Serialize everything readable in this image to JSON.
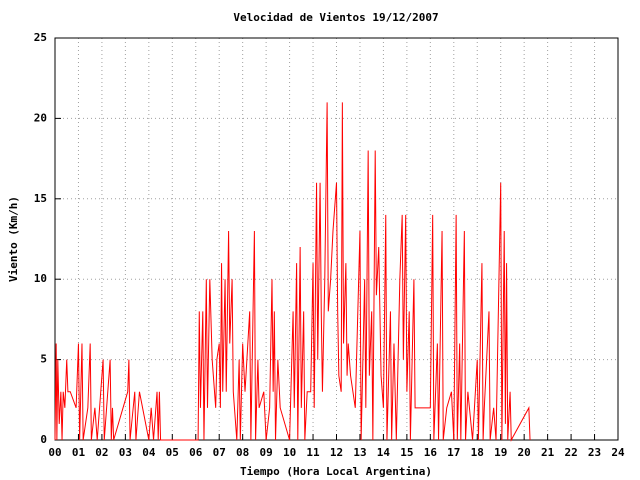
{
  "chart_data": {
    "type": "line",
    "title": "Velocidad de Vientos 19/12/2007",
    "x_label": "Tiempo (Hora Local Argentina)",
    "y_label": "Viento (Km/h)",
    "xlim": [
      0,
      24
    ],
    "ylim": [
      0,
      25
    ],
    "xticks": [
      {
        "value": 0,
        "label": "00"
      },
      {
        "value": 1,
        "label": "01"
      },
      {
        "value": 2,
        "label": "02"
      },
      {
        "value": 3,
        "label": "03"
      },
      {
        "value": 4,
        "label": "04"
      },
      {
        "value": 5,
        "label": "05"
      },
      {
        "value": 6,
        "label": "06"
      },
      {
        "value": 7,
        "label": "07"
      },
      {
        "value": 8,
        "label": "08"
      },
      {
        "value": 9,
        "label": "09"
      },
      10,
      11,
      12,
      13,
      14,
      15,
      16,
      17,
      18,
      19,
      20,
      21,
      22,
      23,
      24
    ],
    "yticks": [
      0,
      5,
      10,
      15,
      20,
      25
    ],
    "grid": true,
    "series": [
      {
        "color": "#ff0000",
        "x": [
          0.0,
          0.05,
          0.08,
          0.12,
          0.18,
          0.25,
          0.3,
          0.35,
          0.42,
          0.5,
          0.55,
          0.65,
          0.9,
          1.0,
          1.05,
          1.15,
          1.2,
          1.4,
          1.5,
          1.55,
          1.7,
          1.8,
          2.05,
          2.1,
          2.35,
          2.4,
          2.45,
          2.5,
          3.1,
          3.15,
          3.2,
          3.4,
          3.45,
          3.6,
          4.0,
          4.1,
          4.2,
          4.35,
          4.4,
          4.45,
          4.5,
          5.5,
          6.1,
          6.15,
          6.2,
          6.3,
          6.35,
          6.45,
          6.5,
          6.6,
          6.7,
          6.85,
          6.9,
          7.0,
          7.05,
          7.1,
          7.15,
          7.25,
          7.3,
          7.4,
          7.45,
          7.55,
          7.6,
          7.75,
          7.85,
          7.9,
          8.0,
          8.1,
          8.3,
          8.35,
          8.5,
          8.55,
          8.65,
          8.7,
          8.9,
          9.0,
          9.15,
          9.25,
          9.3,
          9.35,
          9.4,
          9.5,
          9.6,
          10.0,
          10.15,
          10.2,
          10.3,
          10.35,
          10.45,
          10.5,
          10.6,
          10.65,
          10.75,
          10.9,
          11.0,
          11.05,
          11.15,
          11.2,
          11.3,
          11.35,
          11.4,
          11.5,
          11.6,
          11.65,
          11.75,
          11.85,
          11.95,
          12.0,
          12.05,
          12.1,
          12.2,
          12.25,
          12.3,
          12.4,
          12.45,
          12.5,
          12.6,
          12.8,
          13.0,
          13.05,
          13.2,
          13.25,
          13.35,
          13.4,
          13.5,
          13.55,
          13.65,
          13.7,
          13.8,
          13.9,
          14.0,
          14.1,
          14.15,
          14.3,
          14.35,
          14.45,
          14.55,
          14.7,
          14.8,
          14.85,
          14.95,
          15.0,
          15.1,
          15.15,
          15.3,
          15.35,
          15.45,
          15.8,
          16.0,
          16.1,
          16.15,
          16.3,
          16.35,
          16.5,
          16.55,
          16.7,
          16.9,
          17.0,
          17.1,
          17.15,
          17.25,
          17.3,
          17.45,
          17.5,
          17.6,
          17.8,
          18.0,
          18.05,
          18.2,
          18.25,
          18.3,
          18.5,
          18.55,
          18.7,
          18.8,
          19.0,
          19.05,
          19.15,
          19.2,
          19.25,
          19.3,
          19.4,
          19.45,
          20.2,
          20.25
        ],
        "values": [
          0,
          6,
          0,
          5,
          1,
          3,
          0,
          3,
          2,
          5,
          3,
          3,
          2,
          6,
          0,
          6,
          0,
          2,
          6,
          0,
          2,
          0,
          5,
          0,
          5,
          0,
          2,
          0,
          3,
          5,
          0,
          3,
          0,
          3,
          0,
          2,
          0,
          3,
          0,
          3,
          0,
          0,
          0,
          8,
          2,
          8,
          0,
          10,
          2,
          10,
          5,
          2,
          5,
          6,
          2,
          11,
          3,
          10,
          3,
          13,
          6,
          10,
          3,
          0,
          5,
          0,
          6,
          3,
          8,
          0,
          13,
          0,
          5,
          2,
          3,
          0,
          2,
          10,
          3,
          8,
          0,
          5,
          2,
          0,
          8,
          2,
          11,
          0,
          12,
          2,
          8,
          0,
          3,
          3,
          11,
          2,
          16,
          5,
          16,
          8,
          3,
          10,
          21,
          8,
          10,
          13,
          15,
          16,
          8,
          4,
          3,
          21,
          6,
          11,
          4,
          6,
          4,
          2,
          13,
          0,
          10,
          2,
          18,
          4,
          8,
          0,
          18,
          9,
          12,
          4,
          2,
          14,
          0,
          8,
          0,
          6,
          0,
          10,
          14,
          5,
          14,
          3,
          8,
          0,
          10,
          2,
          2,
          2,
          2,
          14,
          0,
          6,
          0,
          13,
          0,
          2,
          3,
          0,
          14,
          0,
          6,
          0,
          13,
          0,
          3,
          0,
          5,
          0,
          11,
          0,
          2,
          8,
          0,
          2,
          0,
          16,
          0,
          13,
          1,
          11,
          0,
          3,
          0,
          2,
          0
        ]
      }
    ]
  }
}
